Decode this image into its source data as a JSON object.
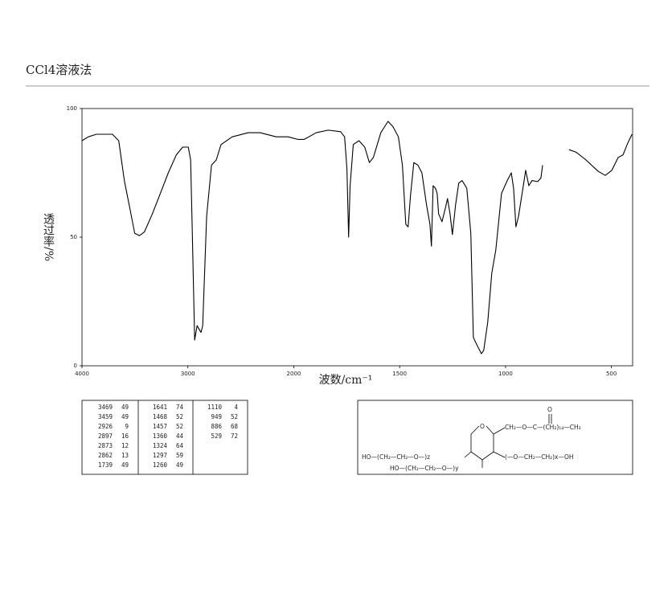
{
  "chart_data": {
    "type": "line",
    "title": "CCl4溶液法",
    "x_label": "波数/cm⁻¹",
    "y_label": "透过率/%",
    "color": "#000000",
    "xlim": [
      4000,
      400
    ],
    "xticks": [
      4000,
      3000,
      2000,
      1500,
      1000,
      500
    ],
    "ylim": [
      0,
      100
    ],
    "yticks": [
      0,
      50,
      100
    ],
    "x": [
      4000,
      3940,
      3864,
      3713,
      3653,
      3600,
      3547,
      3502,
      3457,
      3411,
      3336,
      3260,
      3185,
      3109,
      3049,
      2996,
      2974,
      2958,
      2936,
      2913,
      2891,
      2876,
      2860,
      2823,
      2777,
      2732,
      2687,
      2581,
      2430,
      2317,
      2166,
      2053,
      1981,
      1951,
      1894,
      1837,
      1779,
      1760,
      1749,
      1741,
      1734,
      1719,
      1692,
      1665,
      1643,
      1624,
      1589,
      1555,
      1532,
      1506,
      1487,
      1471,
      1460,
      1449,
      1433,
      1414,
      1395,
      1373,
      1357,
      1350,
      1342,
      1331,
      1323,
      1316,
      1300,
      1285,
      1274,
      1262,
      1251,
      1236,
      1221,
      1205,
      1183,
      1164,
      1152,
      1137,
      1114,
      1103,
      1084,
      1065,
      1046,
      1019,
      992,
      973,
      962,
      951,
      939,
      916,
      905,
      890,
      875,
      848,
      833,
      825,
      760,
      700,
      666,
      620,
      563,
      529,
      498,
      468,
      445,
      426,
      403
    ],
    "values": [
      87.5,
      89,
      90,
      90,
      87.5,
      72,
      61,
      51.5,
      50.6,
      52,
      59,
      67,
      75,
      82,
      85,
      85,
      80,
      51.5,
      10,
      15.6,
      14,
      13,
      15.6,
      58,
      78,
      80,
      86,
      89,
      90.6,
      90.6,
      89,
      89,
      88,
      88,
      90.6,
      91.6,
      91,
      89,
      76.6,
      50,
      70,
      86,
      87.5,
      85,
      79,
      81,
      90.6,
      95,
      93,
      89,
      78,
      55,
      54,
      66,
      79,
      78,
      75,
      62.5,
      55,
      46.5,
      70,
      69,
      67,
      59,
      56,
      61,
      65,
      59,
      51,
      62.5,
      71,
      72,
      69,
      51.5,
      11,
      8.4,
      4.7,
      6,
      17,
      36,
      45,
      67,
      72,
      75,
      69,
      54,
      58,
      70,
      76,
      70,
      72,
      71.6,
      73,
      78,
      null,
      84,
      83,
      80,
      75.6,
      74,
      76,
      81,
      82,
      86,
      90
    ]
  },
  "peak_table": [
    [
      [
        3469,
        49
      ],
      [
        3459,
        49
      ],
      [
        2926,
        9
      ],
      [
        2897,
        16
      ],
      [
        2873,
        12
      ],
      [
        2862,
        13
      ],
      [
        1739,
        49
      ]
    ],
    [
      [
        1641,
        74
      ],
      [
        1468,
        52
      ],
      [
        1457,
        52
      ],
      [
        1360,
        44
      ],
      [
        1324,
        64
      ],
      [
        1297,
        59
      ],
      [
        1260,
        49
      ]
    ],
    [
      [
        1110,
        4
      ],
      [
        949,
        52
      ],
      [
        886,
        68
      ],
      [
        529,
        72
      ]
    ]
  ],
  "structure": {
    "ring_oxygen": "O",
    "carbonyl_oxygen": "O",
    "ester_chain": "CH₂—O—C—(CH₂)₁₄—CH₃",
    "chain_z": "HO—(CH₂—CH₂—O—)z",
    "chain_y": "HO—(CH₂—CH₂—O—)y",
    "chain_x": "(—O—CH₂—CH₂)x—OH"
  }
}
